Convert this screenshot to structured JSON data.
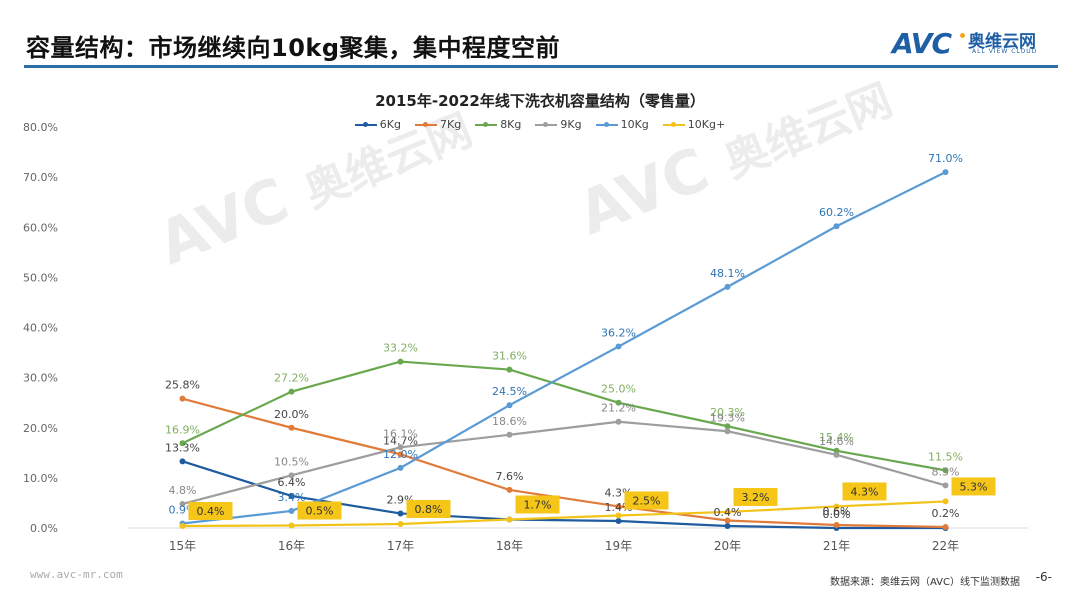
{
  "header": {
    "title": "容量结构：市场继续向10kg聚集，集中程度空前",
    "logo_text": "AVC",
    "logo_cn": "奥维云网",
    "logo_en": "ALL VIEW CLOUD",
    "accent_color": "#2e6da4"
  },
  "watermark": {
    "brand": "AVC",
    "cn": "奥维云网",
    "en": "ALL VIEW CLOUD"
  },
  "footer": {
    "url": "www.avc-mr.com",
    "source": "数据来源：奥维云网（AVC）线下监测数据",
    "page_number": "-6-"
  },
  "chart_data": {
    "type": "line",
    "title": "2015年-2022年线下洗衣机容量结构（零售量）",
    "xlabel": "",
    "ylabel": "",
    "categories": [
      "15年",
      "16年",
      "17年",
      "18年",
      "19年",
      "20年",
      "21年",
      "22年"
    ],
    "ylim": [
      0,
      80
    ],
    "yticks": [
      "0.0%",
      "10.0%",
      "20.0%",
      "30.0%",
      "40.0%",
      "50.0%",
      "60.0%",
      "70.0%",
      "80.0%"
    ],
    "ytick_values": [
      0,
      10,
      20,
      30,
      40,
      50,
      60,
      70,
      80
    ],
    "grid": false,
    "legend_position": "top",
    "series": [
      {
        "name": "6Kg",
        "color": "#1f5b9e",
        "values": [
          13.3,
          6.4,
          2.9,
          1.7,
          1.4,
          0.4,
          0.0,
          0.0
        ],
        "labels": [
          "13.3%",
          "6.4%",
          "2.9%",
          "",
          "1.4%",
          "0.4%",
          "0.0%",
          ""
        ]
      },
      {
        "name": "7Kg",
        "color": "#e07b39",
        "values": [
          25.8,
          20.0,
          14.7,
          7.6,
          4.3,
          1.5,
          0.6,
          0.2
        ],
        "labels": [
          "25.8%",
          "20.0%",
          "14.7%",
          "7.6%",
          "4.3%",
          "",
          "0.6%",
          "0.2%"
        ]
      },
      {
        "name": "8Kg",
        "color": "#6aa84f",
        "values": [
          16.9,
          27.2,
          33.2,
          31.6,
          25.0,
          20.3,
          15.4,
          11.5
        ],
        "labels": [
          "16.9%",
          "27.2%",
          "33.2%",
          "31.6%",
          "25.0%",
          "20.3%",
          "15.4%",
          "11.5%"
        ]
      },
      {
        "name": "9Kg",
        "color": "#9e9e9e",
        "values": [
          4.8,
          10.5,
          16.1,
          18.6,
          21.2,
          19.3,
          14.6,
          8.5
        ],
        "labels": [
          "4.8%",
          "10.5%",
          "16.1%",
          "18.6%",
          "21.2%",
          "19.3%",
          "14.6%",
          "8.5%"
        ]
      },
      {
        "name": "10Kg",
        "color": "#5b9bd5",
        "values": [
          0.9,
          3.4,
          12.0,
          24.5,
          36.2,
          48.1,
          60.2,
          71.0
        ],
        "labels": [
          "0.9%",
          "3.4%",
          "12.0%",
          "24.5%",
          "36.2%",
          "48.1%",
          "60.2%",
          "71.0%"
        ]
      },
      {
        "name": "10Kg+",
        "color": "#f2c318",
        "values": [
          0.4,
          0.5,
          0.8,
          1.7,
          2.5,
          3.2,
          4.3,
          5.3
        ],
        "labels": [
          "0.4%",
          "0.5%",
          "0.8%",
          "1.7%",
          "2.5%",
          "3.2%",
          "4.3%",
          "5.3%"
        ],
        "highlight_labels": true
      }
    ]
  }
}
